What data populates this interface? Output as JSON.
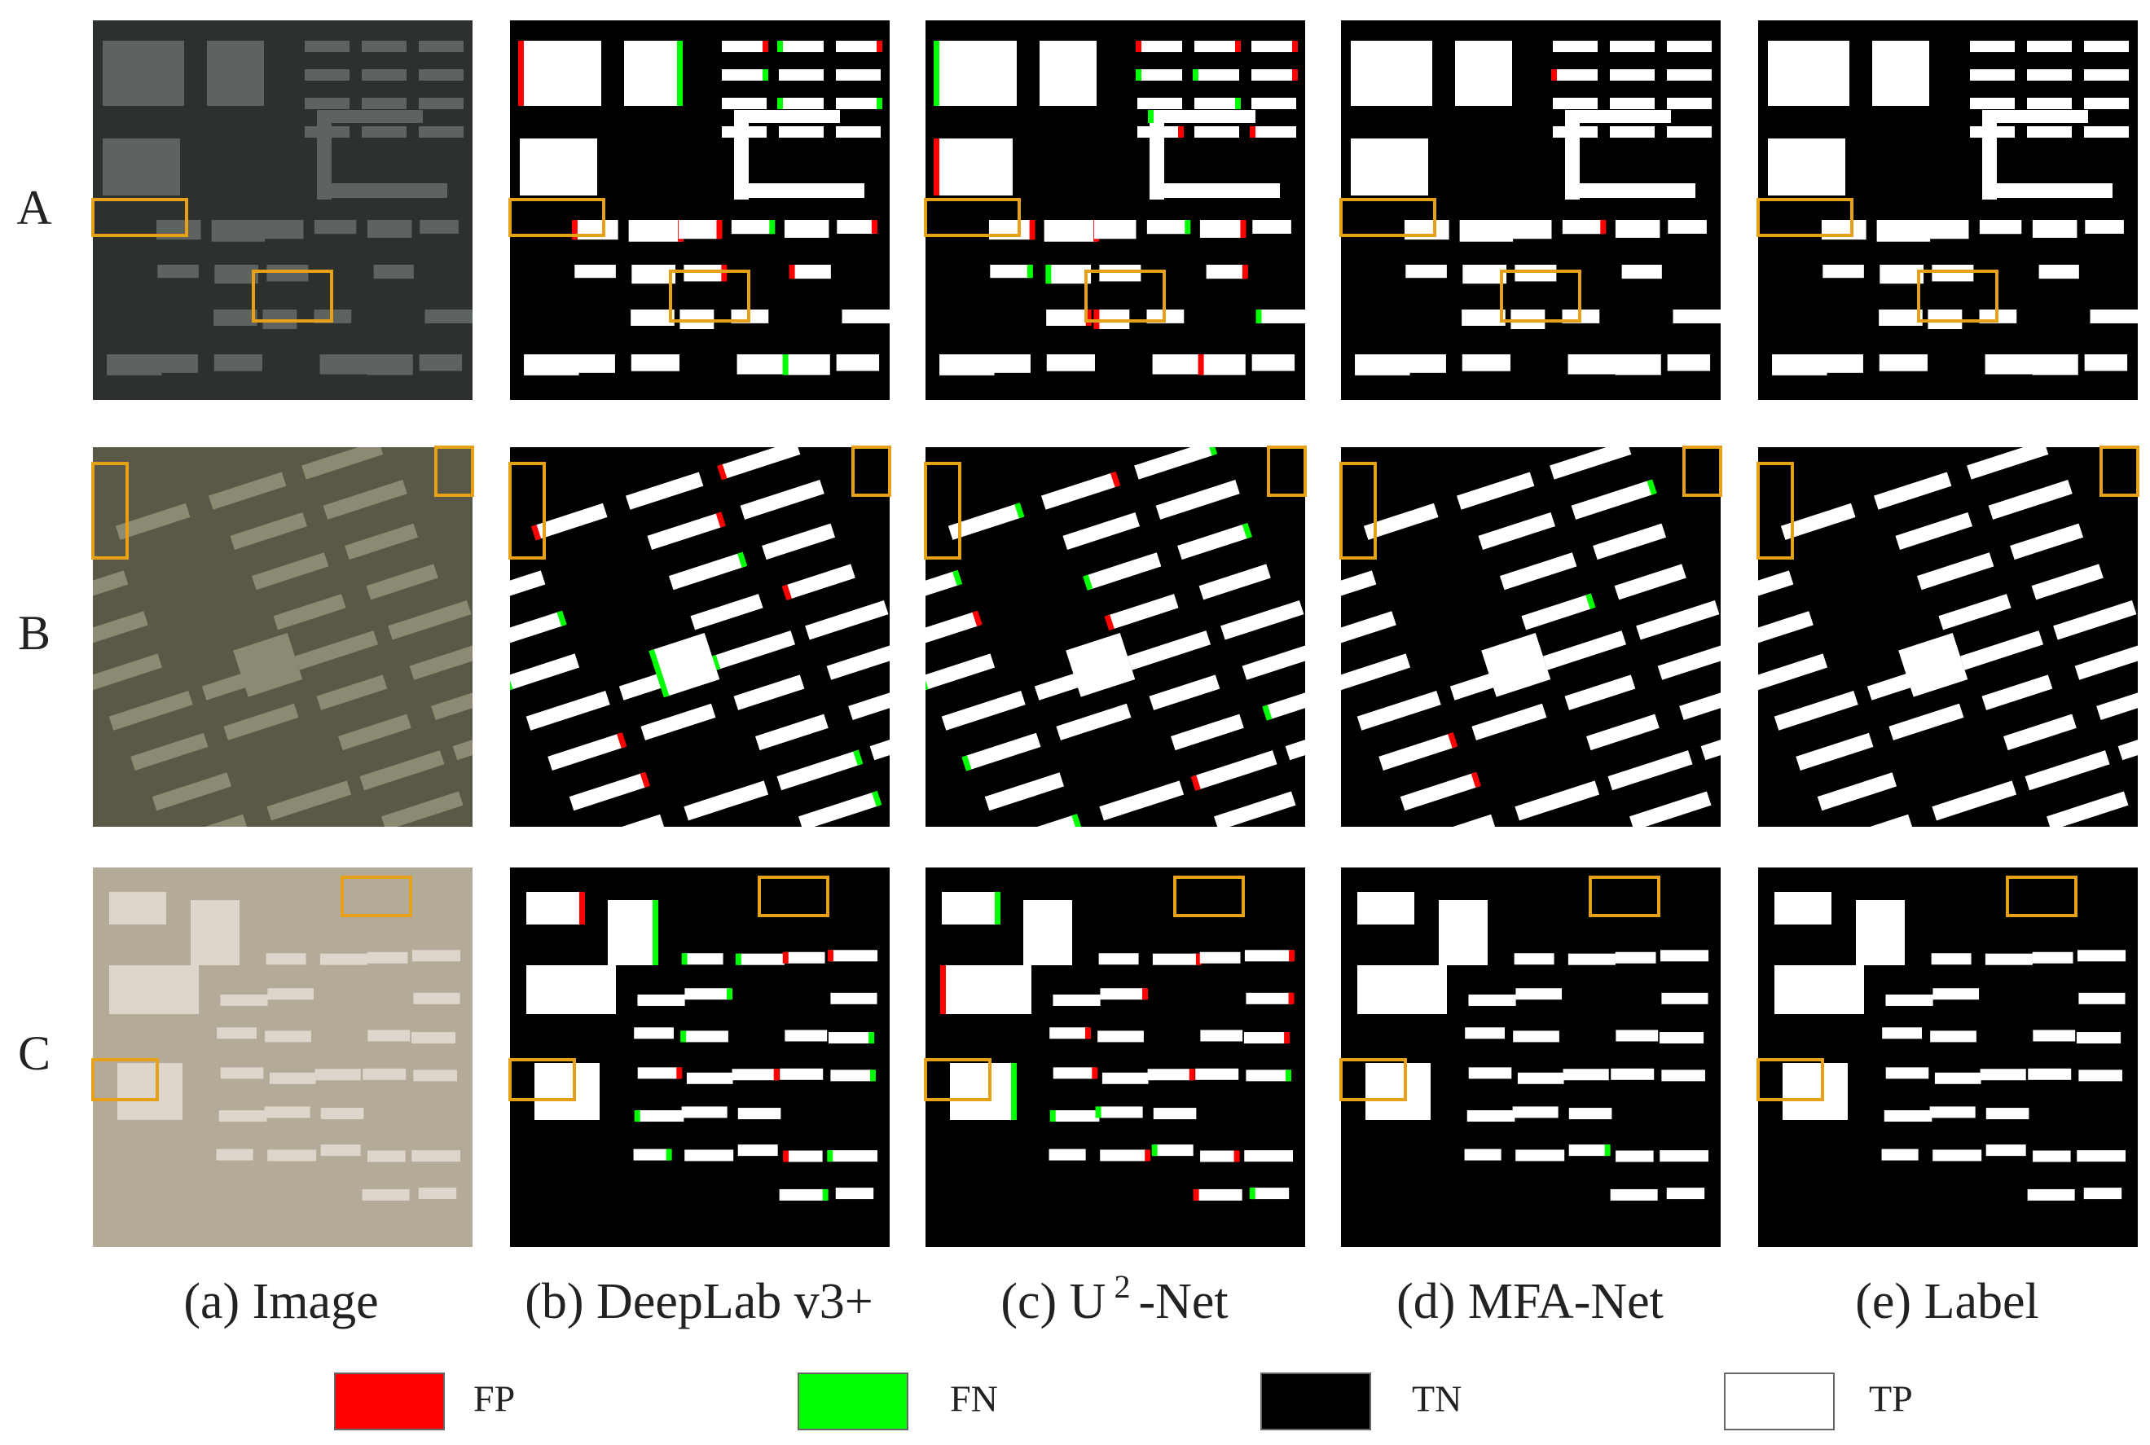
{
  "row_labels": [
    "A",
    "B",
    "C"
  ],
  "captions": [
    {
      "text": "(a) Image"
    },
    {
      "text": "(b) DeepLab v3+"
    },
    {
      "prefix": "(c) U",
      "sup": "2",
      "suffix": "-Net"
    },
    {
      "text": "(d) MFA-Net"
    },
    {
      "text": "(e) Label"
    }
  ],
  "legend": [
    {
      "label": "FP",
      "color": "#ff0000"
    },
    {
      "label": "FN",
      "color": "#00ff00"
    },
    {
      "label": "TN",
      "color": "#000000"
    },
    {
      "label": "TP",
      "color": "#ffffff"
    }
  ]
}
